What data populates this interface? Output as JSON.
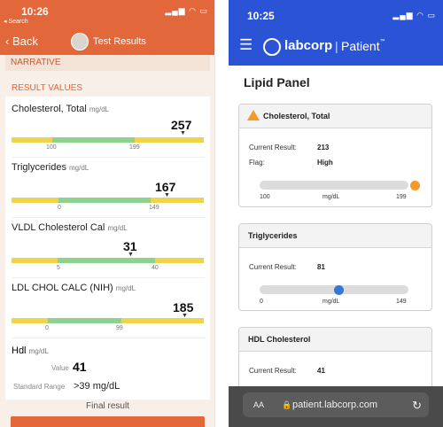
{
  "left": {
    "time": "10:26",
    "search_back": "◂ Search",
    "back_label": "Back",
    "title": "Test Results",
    "narrative": "NARRATIVE",
    "result_values": "RESULT VALUES",
    "results": [
      {
        "name": "Cholesterol, Total",
        "unit": "mg/dL",
        "value": "257",
        "low": "100",
        "high": "199",
        "value_fraction": 0.89
      },
      {
        "name": "Triglycerides",
        "unit": "mg/dL",
        "value": "167",
        "low": "0",
        "high": "149",
        "value_fraction": 0.81
      },
      {
        "name": "VLDL Cholesterol Cal",
        "unit": "mg/dL",
        "value": "31",
        "low": "5",
        "high": "40",
        "value_fraction": 0.62
      },
      {
        "name": "LDL CHOL CALC (NIH)",
        "unit": "mg/dL",
        "value": "185",
        "low": "0",
        "high": "99",
        "value_fraction": 0.9
      }
    ],
    "hdl": {
      "name": "Hdl",
      "unit": "mg/dL",
      "value_label": "Value",
      "value": "41",
      "standard_range_label": "Standard Range",
      "standard_range": ">39 mg/dL"
    },
    "final": "Final result"
  },
  "right": {
    "time": "10:25",
    "brand": "labcorp",
    "portal": "Patient",
    "trademark": "™",
    "heading": "Lipid Panel",
    "cards": [
      {
        "title": "Cholesterol, Total",
        "current_label": "Current Result:",
        "current_value": "213",
        "flag_label": "Flag:",
        "flag_value": "High",
        "low": "100",
        "unit": "mg/dL",
        "high": "199",
        "value_fraction": 1.0,
        "dot_color": "#f39a28"
      },
      {
        "title": "Triglycerides",
        "current_label": "Current Result:",
        "current_value": "81",
        "low": "0",
        "unit": "mg/dL",
        "high": "149",
        "value_fraction": 0.55,
        "dot_color": "#3478d1"
      },
      {
        "title": "HDL Cholesterol",
        "current_label": "Current Result:",
        "current_value": "41"
      }
    ],
    "url_aa": "AA",
    "url": "patient.labcorp.com"
  },
  "icons": {
    "signal": "signal-icon",
    "wifi": "wifi-icon",
    "battery": "battery-icon",
    "back": "chevron-left-icon",
    "menu": "menu-icon",
    "warning": "warning-icon",
    "lock": "lock-icon",
    "reload": "reload-icon"
  },
  "colors": {
    "left_accent": "#e2673a",
    "right_accent": "#2b53d6",
    "range_yellow": "#efd34c",
    "range_green": "#8fd18e",
    "warning_orange": "#f39a28",
    "normal_blue": "#3478d1"
  }
}
